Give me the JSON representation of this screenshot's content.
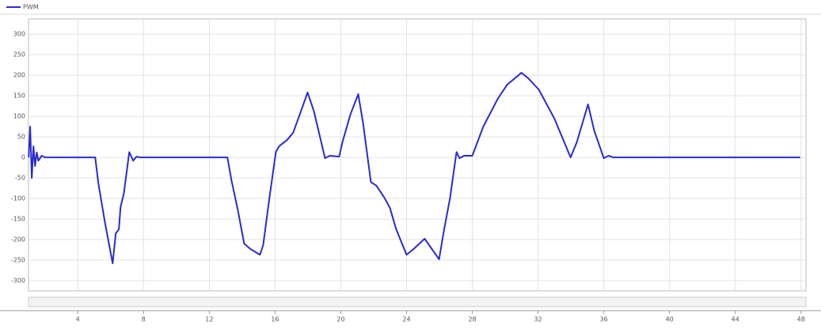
{
  "chart_data": {
    "type": "line",
    "legend": "PWM",
    "series": [
      {
        "name": "PWM",
        "color": "#2b2bd0",
        "x": [
          1.01,
          1.1,
          1.2,
          1.3,
          1.4,
          1.5,
          1.6,
          1.8,
          2.0,
          5.06,
          5.25,
          5.64,
          6.12,
          6.31,
          6.5,
          6.6,
          6.8,
          7.13,
          7.37,
          7.57,
          7.76,
          13.1,
          13.35,
          13.73,
          14.12,
          14.5,
          15.08,
          15.28,
          15.66,
          16.05,
          16.24,
          16.72,
          17.1,
          17.5,
          17.98,
          18.36,
          19.04,
          19.33,
          19.9,
          20.1,
          20.58,
          21.06,
          21.35,
          21.83,
          22.17,
          22.65,
          22.99,
          23.37,
          24.0,
          24.43,
          25.1,
          25.98,
          26.27,
          26.65,
          27.04,
          27.23,
          27.5,
          28.0,
          28.67,
          29.54,
          30.12,
          30.99,
          31.37,
          32.05,
          33.0,
          33.98,
          34.36,
          35.04,
          35.42,
          36.0,
          36.29,
          36.58,
          47.95
        ],
        "values": [
          0,
          75,
          -50,
          27,
          -21,
          12,
          -8,
          4,
          0,
          0,
          -63,
          -156,
          -258,
          -185,
          -175,
          -121,
          -88,
          13,
          -8,
          2,
          0,
          0,
          -56,
          -127,
          -210,
          -223,
          -237,
          -213,
          -98,
          13,
          27,
          42,
          60,
          104,
          158,
          113,
          -2,
          4,
          2,
          37,
          104,
          154,
          85,
          -60,
          -69,
          -98,
          -123,
          -175,
          -237,
          -223,
          -198,
          -248,
          -179,
          -98,
          13,
          -2,
          4,
          4,
          75,
          142,
          177,
          206,
          194,
          165,
          94,
          0,
          37,
          129,
          65,
          -2,
          4,
          0,
          0
        ]
      }
    ],
    "xlim": [
      1.0,
      48.3
    ],
    "xticks": [
      4,
      8,
      12,
      16,
      20,
      24,
      28,
      32,
      36,
      40,
      44,
      48
    ],
    "ylim": [
      -325,
      337
    ],
    "yticks": [
      300,
      250,
      200,
      150,
      100,
      50,
      0,
      -50,
      -100,
      -150,
      -200,
      -250,
      -300
    ],
    "grid": true
  }
}
